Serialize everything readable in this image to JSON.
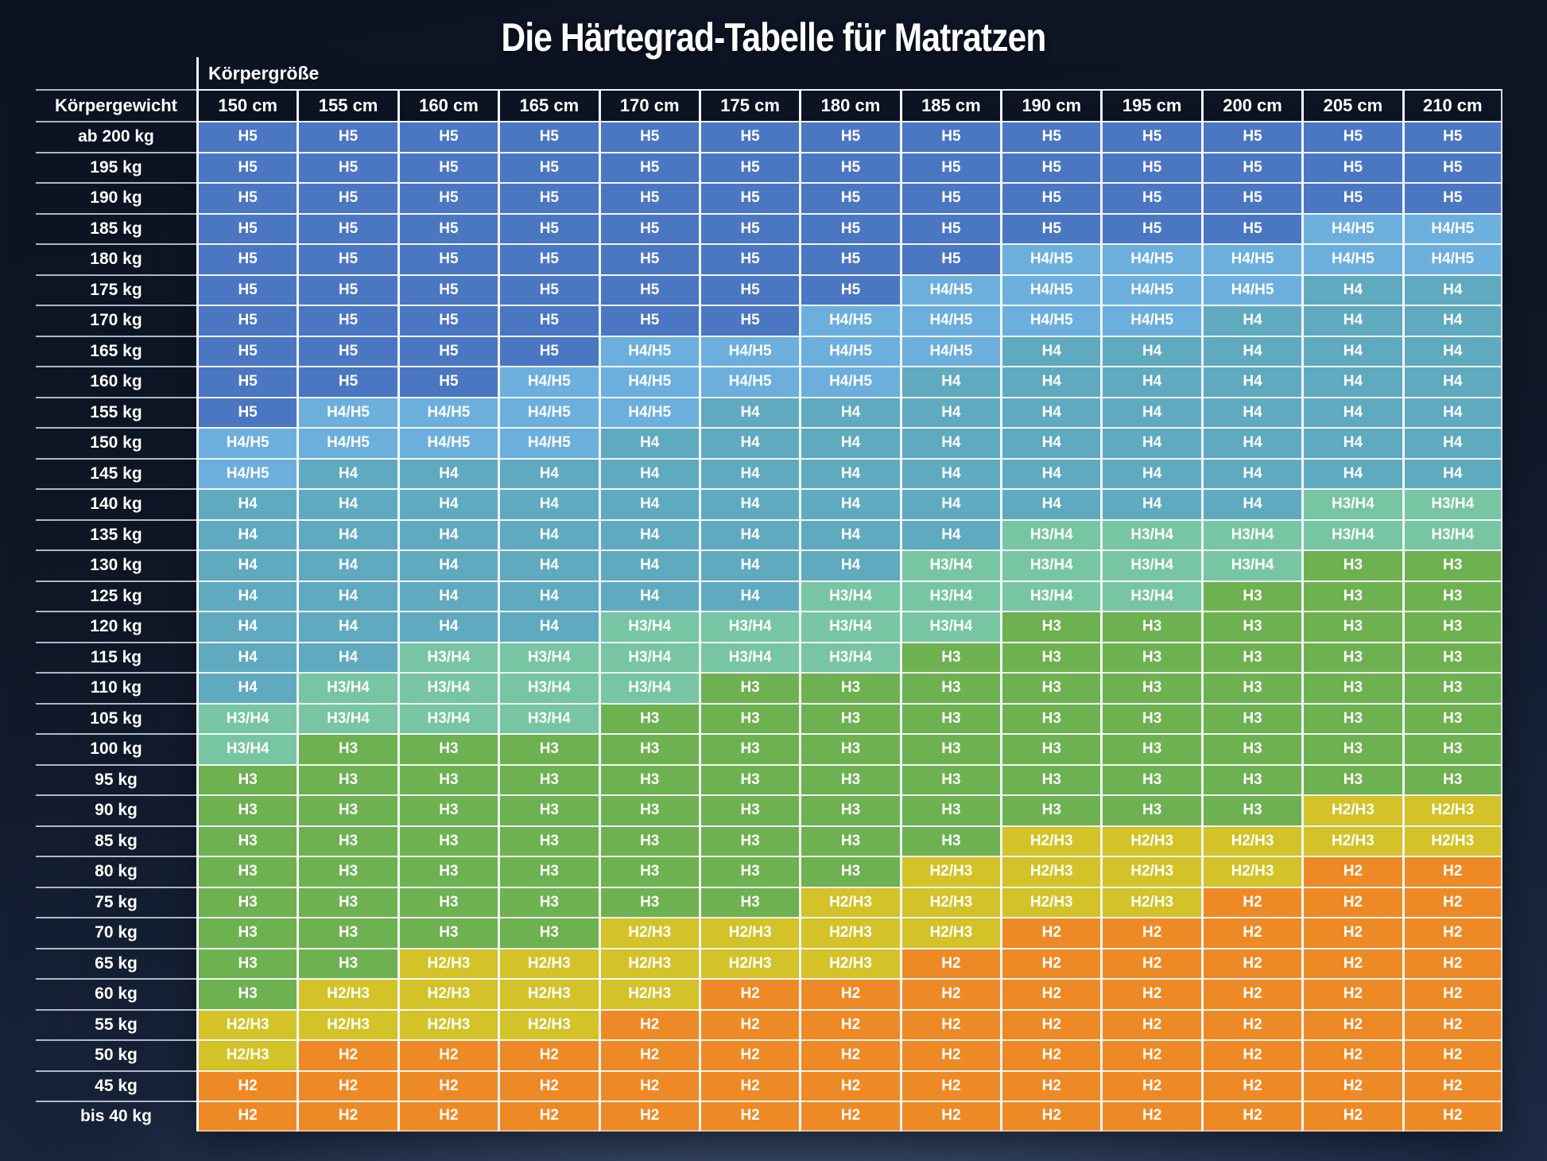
{
  "title": "Die Härtegrad-Tabelle für Matratzen",
  "colors": {
    "background_top": "#0c1322",
    "background_bottom": "#32415f",
    "grid_line": "#f2f6fa",
    "text": "#ffffff"
  },
  "chart_data": {
    "type": "heatmap",
    "title": "Die Härtegrad-Tabelle für Matratzen",
    "x_axis_label": "Körpergröße",
    "y_axis_label": "Körpergewicht",
    "legend_position": "none",
    "grid": true,
    "columns": [
      "150 cm",
      "155 cm",
      "160 cm",
      "165 cm",
      "170 cm",
      "175 cm",
      "180 cm",
      "185 cm",
      "190 cm",
      "195 cm",
      "200 cm",
      "205 cm",
      "210 cm"
    ],
    "rows": [
      "ab 200 kg",
      "195 kg",
      "190 kg",
      "185 kg",
      "180 kg",
      "175 kg",
      "170 kg",
      "165 kg",
      "160 kg",
      "155 kg",
      "150 kg",
      "145 kg",
      "140 kg",
      "135 kg",
      "130 kg",
      "125 kg",
      "120 kg",
      "115 kg",
      "110 kg",
      "105 kg",
      "100 kg",
      "95 kg",
      "90 kg",
      "85 kg",
      "80 kg",
      "75 kg",
      "70 kg",
      "65 kg",
      "60 kg",
      "55 kg",
      "50 kg",
      "45 kg",
      "bis 40 kg"
    ],
    "values": [
      [
        "H5",
        "H5",
        "H5",
        "H5",
        "H5",
        "H5",
        "H5",
        "H5",
        "H5",
        "H5",
        "H5",
        "H5",
        "H5"
      ],
      [
        "H5",
        "H5",
        "H5",
        "H5",
        "H5",
        "H5",
        "H5",
        "H5",
        "H5",
        "H5",
        "H5",
        "H5",
        "H5"
      ],
      [
        "H5",
        "H5",
        "H5",
        "H5",
        "H5",
        "H5",
        "H5",
        "H5",
        "H5",
        "H5",
        "H5",
        "H5",
        "H5"
      ],
      [
        "H5",
        "H5",
        "H5",
        "H5",
        "H5",
        "H5",
        "H5",
        "H5",
        "H5",
        "H5",
        "H5",
        "H4/H5",
        "H4/H5"
      ],
      [
        "H5",
        "H5",
        "H5",
        "H5",
        "H5",
        "H5",
        "H5",
        "H5",
        "H4/H5",
        "H4/H5",
        "H4/H5",
        "H4/H5",
        "H4/H5"
      ],
      [
        "H5",
        "H5",
        "H5",
        "H5",
        "H5",
        "H5",
        "H5",
        "H4/H5",
        "H4/H5",
        "H4/H5",
        "H4/H5",
        "H4",
        "H4"
      ],
      [
        "H5",
        "H5",
        "H5",
        "H5",
        "H5",
        "H5",
        "H4/H5",
        "H4/H5",
        "H4/H5",
        "H4/H5",
        "H4",
        "H4",
        "H4"
      ],
      [
        "H5",
        "H5",
        "H5",
        "H5",
        "H4/H5",
        "H4/H5",
        "H4/H5",
        "H4/H5",
        "H4",
        "H4",
        "H4",
        "H4",
        "H4"
      ],
      [
        "H5",
        "H5",
        "H5",
        "H4/H5",
        "H4/H5",
        "H4/H5",
        "H4/H5",
        "H4",
        "H4",
        "H4",
        "H4",
        "H4",
        "H4"
      ],
      [
        "H5",
        "H4/H5",
        "H4/H5",
        "H4/H5",
        "H4/H5",
        "H4",
        "H4",
        "H4",
        "H4",
        "H4",
        "H4",
        "H4",
        "H4"
      ],
      [
        "H4/H5",
        "H4/H5",
        "H4/H5",
        "H4/H5",
        "H4",
        "H4",
        "H4",
        "H4",
        "H4",
        "H4",
        "H4",
        "H4",
        "H4"
      ],
      [
        "H4/H5",
        "H4",
        "H4",
        "H4",
        "H4",
        "H4",
        "H4",
        "H4",
        "H4",
        "H4",
        "H4",
        "H4",
        "H4"
      ],
      [
        "H4",
        "H4",
        "H4",
        "H4",
        "H4",
        "H4",
        "H4",
        "H4",
        "H4",
        "H4",
        "H4",
        "H3/H4",
        "H3/H4"
      ],
      [
        "H4",
        "H4",
        "H4",
        "H4",
        "H4",
        "H4",
        "H4",
        "H4",
        "H3/H4",
        "H3/H4",
        "H3/H4",
        "H3/H4",
        "H3/H4"
      ],
      [
        "H4",
        "H4",
        "H4",
        "H4",
        "H4",
        "H4",
        "H4",
        "H3/H4",
        "H3/H4",
        "H3/H4",
        "H3/H4",
        "H3",
        "H3"
      ],
      [
        "H4",
        "H4",
        "H4",
        "H4",
        "H4",
        "H4",
        "H3/H4",
        "H3/H4",
        "H3/H4",
        "H3/H4",
        "H3",
        "H3",
        "H3"
      ],
      [
        "H4",
        "H4",
        "H4",
        "H4",
        "H3/H4",
        "H3/H4",
        "H3/H4",
        "H3/H4",
        "H3",
        "H3",
        "H3",
        "H3",
        "H3"
      ],
      [
        "H4",
        "H4",
        "H3/H4",
        "H3/H4",
        "H3/H4",
        "H3/H4",
        "H3/H4",
        "H3",
        "H3",
        "H3",
        "H3",
        "H3",
        "H3"
      ],
      [
        "H4",
        "H3/H4",
        "H3/H4",
        "H3/H4",
        "H3/H4",
        "H3",
        "H3",
        "H3",
        "H3",
        "H3",
        "H3",
        "H3",
        "H3"
      ],
      [
        "H3/H4",
        "H3/H4",
        "H3/H4",
        "H3/H4",
        "H3",
        "H3",
        "H3",
        "H3",
        "H3",
        "H3",
        "H3",
        "H3",
        "H3"
      ],
      [
        "H3/H4",
        "H3",
        "H3",
        "H3",
        "H3",
        "H3",
        "H3",
        "H3",
        "H3",
        "H3",
        "H3",
        "H3",
        "H3"
      ],
      [
        "H3",
        "H3",
        "H3",
        "H3",
        "H3",
        "H3",
        "H3",
        "H3",
        "H3",
        "H3",
        "H3",
        "H3",
        "H3"
      ],
      [
        "H3",
        "H3",
        "H3",
        "H3",
        "H3",
        "H3",
        "H3",
        "H3",
        "H3",
        "H3",
        "H3",
        "H2/H3",
        "H2/H3"
      ],
      [
        "H3",
        "H3",
        "H3",
        "H3",
        "H3",
        "H3",
        "H3",
        "H3",
        "H2/H3",
        "H2/H3",
        "H2/H3",
        "H2/H3",
        "H2/H3"
      ],
      [
        "H3",
        "H3",
        "H3",
        "H3",
        "H3",
        "H3",
        "H3",
        "H2/H3",
        "H2/H3",
        "H2/H3",
        "H2/H3",
        "H2",
        "H2"
      ],
      [
        "H3",
        "H3",
        "H3",
        "H3",
        "H3",
        "H3",
        "H2/H3",
        "H2/H3",
        "H2/H3",
        "H2/H3",
        "H2",
        "H2",
        "H2"
      ],
      [
        "H3",
        "H3",
        "H3",
        "H3",
        "H2/H3",
        "H2/H3",
        "H2/H3",
        "H2/H3",
        "H2",
        "H2",
        "H2",
        "H2",
        "H2"
      ],
      [
        "H3",
        "H3",
        "H2/H3",
        "H2/H3",
        "H2/H3",
        "H2/H3",
        "H2/H3",
        "H2",
        "H2",
        "H2",
        "H2",
        "H2",
        "H2"
      ],
      [
        "H3",
        "H2/H3",
        "H2/H3",
        "H2/H3",
        "H2/H3",
        "H2",
        "H2",
        "H2",
        "H2",
        "H2",
        "H2",
        "H2",
        "H2"
      ],
      [
        "H2/H3",
        "H2/H3",
        "H2/H3",
        "H2/H3",
        "H2",
        "H2",
        "H2",
        "H2",
        "H2",
        "H2",
        "H2",
        "H2",
        "H2"
      ],
      [
        "H2/H3",
        "H2",
        "H2",
        "H2",
        "H2",
        "H2",
        "H2",
        "H2",
        "H2",
        "H2",
        "H2",
        "H2",
        "H2"
      ],
      [
        "H2",
        "H2",
        "H2",
        "H2",
        "H2",
        "H2",
        "H2",
        "H2",
        "H2",
        "H2",
        "H2",
        "H2",
        "H2"
      ],
      [
        "H2",
        "H2",
        "H2",
        "H2",
        "H2",
        "H2",
        "H2",
        "H2",
        "H2",
        "H2",
        "H2",
        "H2",
        "H2"
      ]
    ],
    "legend": {
      "H5": "#4b76c2",
      "H4/H5": "#6cafdd",
      "H4": "#60aabf",
      "H3/H4": "#77c5a3",
      "H3": "#6eb150",
      "H2/H3": "#d3c228",
      "H2": "#ee8a25"
    }
  }
}
